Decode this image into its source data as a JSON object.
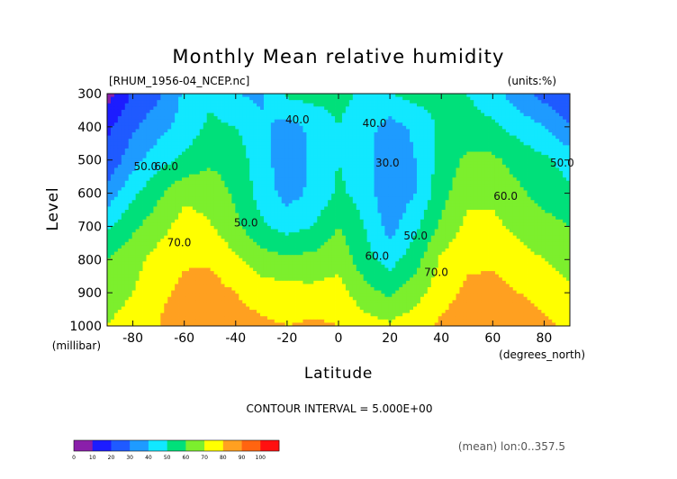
{
  "chart_data": {
    "type": "contour",
    "title": "Monthly Mean relative humidity",
    "file_label": "[RHUM_1956-04_NCEP.nc]",
    "units_label": "(units:%)",
    "xlabel": "Latitude",
    "xunit_label": "(degrees_north)",
    "ylabel": "Level",
    "yunit_label": "(millibar)",
    "xlim": [
      -90,
      90
    ],
    "ylim": [
      1000,
      300
    ],
    "x_ticks": [
      "-80",
      "-60",
      "-40",
      "-20",
      "0",
      "20",
      "40",
      "60",
      "80"
    ],
    "x_tick_values": [
      -80,
      -60,
      -40,
      -20,
      0,
      20,
      40,
      60,
      80
    ],
    "y_ticks": [
      "300",
      "400",
      "500",
      "600",
      "700",
      "800",
      "900",
      "1000"
    ],
    "y_tick_values": [
      300,
      400,
      500,
      600,
      700,
      800,
      900,
      1000
    ],
    "contour_interval_label": "CONTOUR INTERVAL = 5.000E+00",
    "subset_label": "(mean) lon:0..357.5",
    "contour_labels": [
      {
        "text": "40.0",
        "lat": -16,
        "level": 390
      },
      {
        "text": "40.0",
        "lat": 14,
        "level": 400
      },
      {
        "text": "30.0",
        "lat": 19,
        "level": 520
      },
      {
        "text": "50.0",
        "lat": -75,
        "level": 530
      },
      {
        "text": "60.0",
        "lat": -67,
        "level": 530
      },
      {
        "text": "50.0",
        "lat": -36,
        "level": 700
      },
      {
        "text": "70.0",
        "lat": -62,
        "level": 760
      },
      {
        "text": "60.0",
        "lat": 15,
        "level": 800
      },
      {
        "text": "50.0",
        "lat": 30,
        "level": 740
      },
      {
        "text": "70.0",
        "lat": 38,
        "level": 850
      },
      {
        "text": "60.0",
        "lat": 65,
        "level": 620
      },
      {
        "text": "50.0",
        "lat": 87,
        "level": 520
      }
    ],
    "profiles": {
      "lat": [
        -90,
        -80,
        -70,
        -60,
        -50,
        -40,
        -30,
        -20,
        -10,
        0,
        10,
        20,
        30,
        40,
        50,
        60,
        70,
        80,
        90
      ],
      "level": [
        300,
        400,
        500,
        600,
        700,
        800,
        900,
        1000
      ],
      "values": [
        [
          5,
          22,
          28,
          42,
          48,
          40,
          38,
          52,
          54,
          53,
          48,
          50,
          54,
          54,
          50,
          44,
          34,
          26,
          22
        ],
        [
          18,
          28,
          36,
          44,
          52,
          50,
          42,
          36,
          42,
          50,
          44,
          36,
          42,
          52,
          54,
          52,
          46,
          40,
          30
        ],
        [
          22,
          36,
          46,
          52,
          58,
          56,
          44,
          34,
          42,
          50,
          44,
          32,
          40,
          54,
          62,
          62,
          56,
          52,
          46
        ],
        [
          34,
          48,
          58,
          68,
          66,
          58,
          46,
          36,
          42,
          52,
          46,
          32,
          40,
          56,
          68,
          68,
          62,
          56,
          52
        ],
        [
          48,
          58,
          66,
          74,
          71,
          62,
          52,
          46,
          50,
          60,
          50,
          36,
          48,
          62,
          72,
          72,
          68,
          64,
          60
        ],
        [
          60,
          66,
          74,
          79,
          79,
          72,
          64,
          62,
          63,
          67,
          54,
          46,
          56,
          72,
          78,
          78,
          73,
          70,
          66
        ],
        [
          66,
          70,
          78,
          82,
          84,
          80,
          76,
          74,
          73,
          74,
          64,
          58,
          66,
          76,
          82,
          84,
          80,
          76,
          72
        ],
        [
          70,
          74,
          80,
          86,
          88,
          84,
          82,
          80,
          82,
          80,
          74,
          72,
          76,
          82,
          86,
          90,
          88,
          82,
          78
        ]
      ]
    }
  },
  "colorbar": {
    "tick_labels": [
      "0",
      "10",
      "20",
      "30",
      "40",
      "50",
      "60",
      "70",
      "80",
      "90",
      "100"
    ],
    "colors": [
      "#8a1faa",
      "#1c1cff",
      "#1f5aff",
      "#1e9bff",
      "#11e8ff",
      "#00e07a",
      "#7cef2d",
      "#ffff00",
      "#ffa020",
      "#ff6410",
      "#ff1010"
    ]
  },
  "colors": {
    "foreground": "#111111",
    "missing": "#ffffff"
  }
}
